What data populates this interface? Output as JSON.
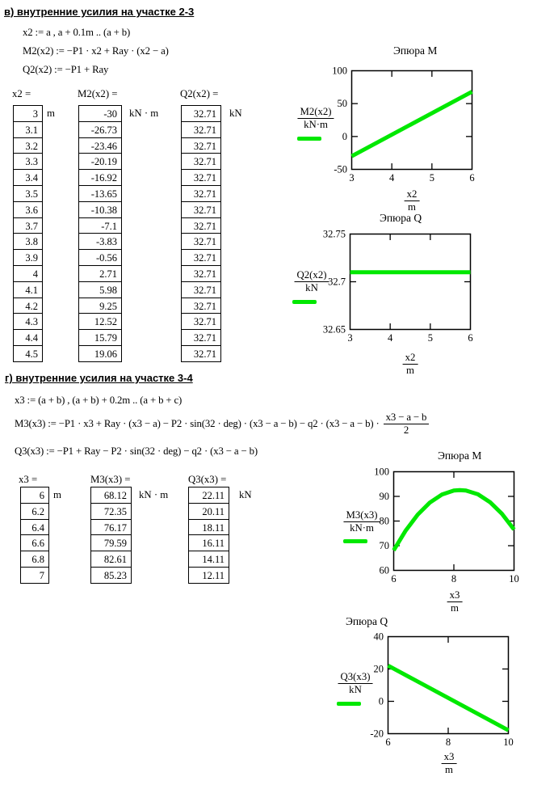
{
  "colors": {
    "trace": "#00e800",
    "text": "#000000",
    "bg": "#ffffff"
  },
  "section_v": {
    "header": "в) внутренние усилия на участке 2-3",
    "formulas": [
      "x2 := a , a + 0.1m .. (a + b)",
      "M2(x2) := −P1 · x2 + Ray · (x2 − a)",
      "Q2(x2) := −P1 + Ray"
    ],
    "tables": [
      {
        "header": "x2 =",
        "unit": "m",
        "values": [
          "3",
          "3.1",
          "3.2",
          "3.3",
          "3.4",
          "3.5",
          "3.6",
          "3.7",
          "3.8",
          "3.9",
          "4",
          "4.1",
          "4.2",
          "4.3",
          "4.4",
          "4.5"
        ]
      },
      {
        "header": "M2(x2) =",
        "unit": "kN · m",
        "values": [
          "-30",
          "-26.73",
          "-23.46",
          "-20.19",
          "-16.92",
          "-13.65",
          "-10.38",
          "-7.1",
          "-3.83",
          "-0.56",
          "2.71",
          "5.98",
          "9.25",
          "12.52",
          "15.79",
          "19.06"
        ]
      },
      {
        "header": "Q2(x2) =",
        "unit": "kN",
        "values": [
          "32.71",
          "32.71",
          "32.71",
          "32.71",
          "32.71",
          "32.71",
          "32.71",
          "32.71",
          "32.71",
          "32.71",
          "32.71",
          "32.71",
          "32.71",
          "32.71",
          "32.71",
          "32.71"
        ]
      }
    ]
  },
  "section_g": {
    "header": "г) внутренние усилия на участке 3-4",
    "formulas": [
      "x3 := (a + b) , (a + b) + 0.2m .. (a + b + c)",
      "M3(x3) := −P1 · x3 + Ray · (x3 − a) − P2 · sin(32 · deg) · (x3 − a − b) − q2 · (x3 − a − b) ·",
      "Q3(x3) := −P1 + Ray − P2 · sin(32 · deg) − q2 · (x3 − a − b)"
    ],
    "m3_fraction": {
      "num": "x3 − a − b",
      "den": "2"
    },
    "tables": [
      {
        "header": "x3 =",
        "unit": "m",
        "values": [
          "6",
          "6.2",
          "6.4",
          "6.6",
          "6.8",
          "7"
        ]
      },
      {
        "header": "M3(x3) =",
        "unit": "kN · m",
        "values": [
          "68.12",
          "72.35",
          "76.17",
          "79.59",
          "82.61",
          "85.23"
        ]
      },
      {
        "header": "Q3(x3) =",
        "unit": "kN",
        "values": [
          "22.11",
          "20.11",
          "18.11",
          "16.11",
          "14.11",
          "12.11"
        ]
      }
    ]
  },
  "chart_data": [
    {
      "type": "line",
      "title": "Эпюра M",
      "ylabel_num": "M2(x2)",
      "ylabel_den": "kN·m",
      "xlabel_num": "x2",
      "xlabel_den": "m",
      "xlim": [
        3,
        6
      ],
      "ylim": [
        -50,
        100
      ],
      "xticks": [
        3,
        4,
        5,
        6
      ],
      "yticks": [
        100,
        50,
        0,
        -50
      ],
      "x": [
        3,
        6
      ],
      "y": [
        -30,
        68.13
      ]
    },
    {
      "type": "line",
      "title": "Эпюра Q",
      "ylabel_num": "Q2(x2)",
      "ylabel_den": "kN",
      "xlabel_num": "x2",
      "xlabel_den": "m",
      "xlim": [
        3,
        6
      ],
      "ylim": [
        32.65,
        32.75
      ],
      "xticks": [
        3,
        4,
        5,
        6
      ],
      "yticks": [
        32.75,
        32.7,
        32.65
      ],
      "x": [
        3,
        6
      ],
      "y": [
        32.71,
        32.71
      ]
    },
    {
      "type": "line",
      "title": "Эпюра M",
      "ylabel_num": "M3(x3)",
      "ylabel_den": "kN·m",
      "xlabel_num": "x3",
      "xlabel_den": "m",
      "xlim": [
        6,
        10
      ],
      "ylim": [
        60,
        100
      ],
      "xticks": [
        6,
        8,
        10
      ],
      "yticks": [
        100,
        90,
        80,
        70,
        60
      ],
      "x": [
        6,
        6.4,
        6.8,
        7.2,
        7.6,
        8,
        8.2,
        8.4,
        8.8,
        9.2,
        9.6,
        10
      ],
      "y": [
        68.13,
        76.17,
        82.62,
        87.46,
        90.71,
        92.35,
        92.57,
        92.39,
        90.84,
        87.68,
        82.93,
        76.57
      ]
    },
    {
      "type": "line",
      "title": "Эпюра Q",
      "ylabel_num": "Q3(x3)",
      "ylabel_den": "kN",
      "xlabel_num": "x3",
      "xlabel_den": "m",
      "xlim": [
        6,
        10
      ],
      "ylim": [
        -20,
        40
      ],
      "xticks": [
        6,
        8,
        10
      ],
      "yticks": [
        40,
        20,
        0,
        -20
      ],
      "x": [
        6,
        10
      ],
      "y": [
        22.11,
        -17.89
      ]
    }
  ]
}
